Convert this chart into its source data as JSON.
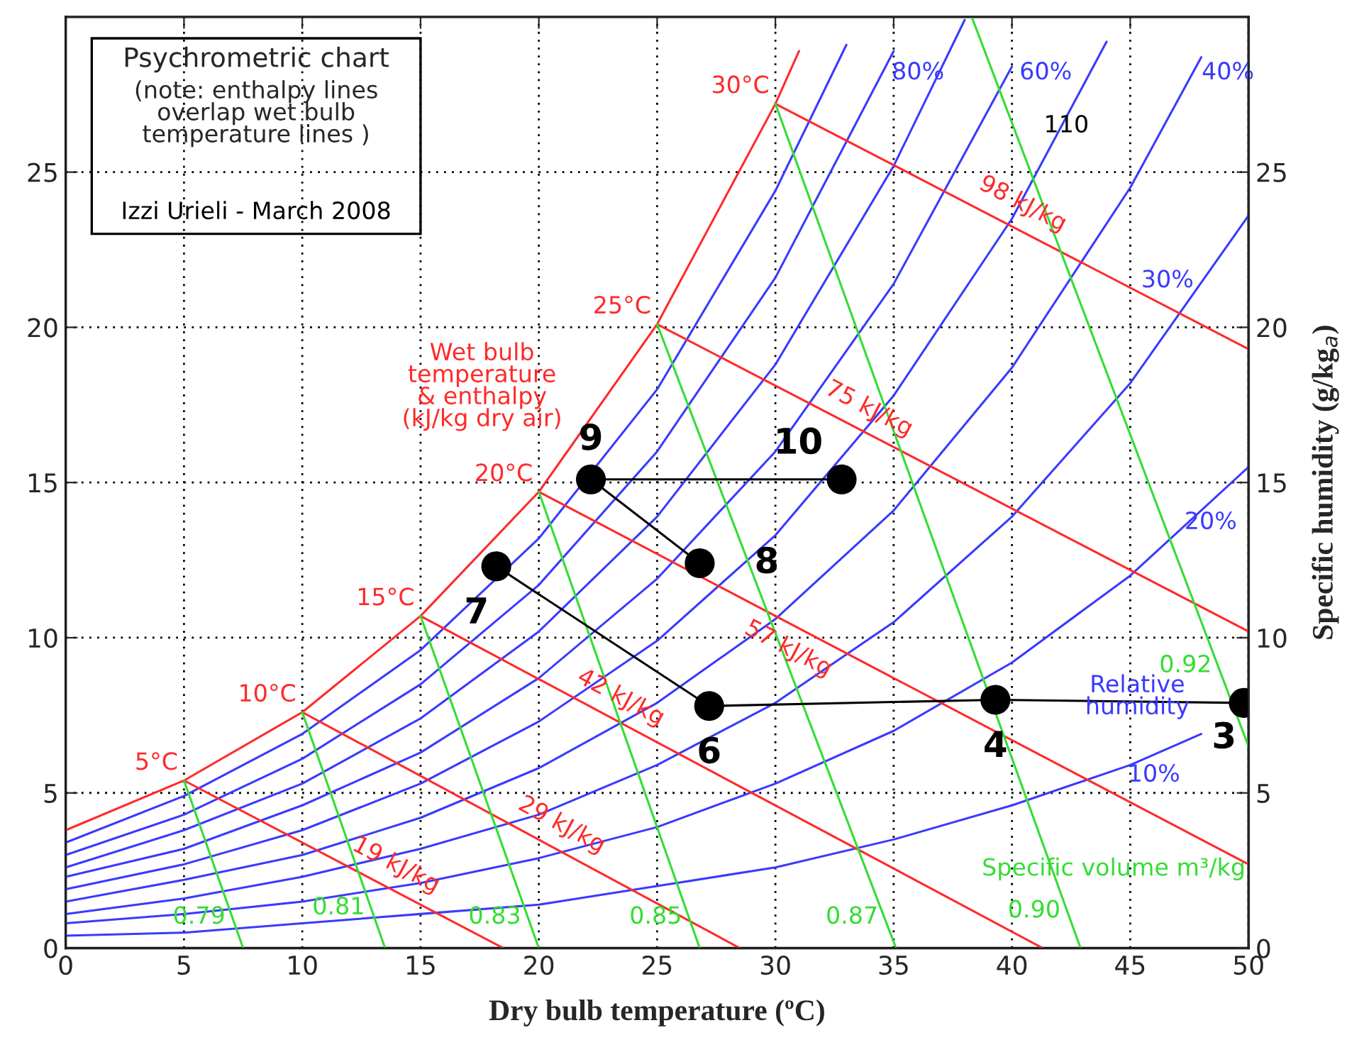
{
  "chart_data": {
    "type": "line",
    "title": "Psychrometric chart",
    "subtitle": "(note: enthalpy lines\noverlap wet bulb\ntemperature lines )",
    "xlabel": "Dry bulb temperature (ºC)",
    "y2label": "Specific humidity (g/kg$_{a}$)",
    "xlim": [
      0,
      50
    ],
    "xticks": [
      0,
      5,
      10,
      15,
      20,
      25,
      30,
      35,
      40,
      45,
      50
    ],
    "ylim": [
      0,
      30
    ],
    "yticks": [
      0,
      5,
      10,
      15,
      20,
      25
    ],
    "y2lim": [
      0,
      30
    ],
    "y2ticks": [
      0,
      5,
      10,
      15,
      20,
      25
    ],
    "grid": true,
    "series": [
      {
        "color": "#3a3aff",
        "x": [
          0,
          5,
          10,
          15,
          20,
          25,
          30,
          33
        ],
        "values": [
          3.4,
          4.9,
          6.9,
          9.6,
          13.2,
          18.0,
          24.4,
          29.1
        ]
      },
      {
        "color": "#3a3aff",
        "x": [
          0,
          5,
          10,
          15,
          20,
          25,
          30,
          35
        ],
        "values": [
          3.0,
          4.3,
          6.1,
          8.5,
          11.7,
          16.0,
          21.6,
          28.9
        ]
      },
      {
        "color": "#3a3aff",
        "x": [
          0,
          5,
          10,
          15,
          20,
          25,
          30,
          35,
          38
        ],
        "values": [
          2.6,
          3.8,
          5.3,
          7.4,
          10.2,
          13.9,
          18.8,
          25.2,
          29.9
        ]
      },
      {
        "color": "#3a3aff",
        "x": [
          0,
          5,
          10,
          15,
          20,
          25,
          30,
          35,
          40
        ],
        "values": [
          2.3,
          3.2,
          4.6,
          6.3,
          8.7,
          11.9,
          16.0,
          21.4,
          28.4
        ]
      },
      {
        "color": "#3a3aff",
        "x": [
          0,
          5,
          10,
          15,
          20,
          25,
          30,
          35,
          40,
          44
        ],
        "values": [
          1.9,
          2.7,
          3.8,
          5.3,
          7.3,
          9.9,
          13.3,
          17.8,
          23.5,
          29.2
        ]
      },
      {
        "color": "#3a3aff",
        "x": [
          0,
          5,
          10,
          15,
          20,
          25,
          30,
          35,
          40,
          45,
          48
        ],
        "values": [
          1.5,
          2.2,
          3.0,
          4.2,
          5.8,
          7.9,
          10.6,
          14.1,
          18.7,
          24.5,
          28.7
        ]
      },
      {
        "color": "#3a3aff",
        "x": [
          0,
          5,
          10,
          15,
          20,
          25,
          30,
          35,
          40,
          45,
          50
        ],
        "values": [
          1.1,
          1.6,
          2.3,
          3.2,
          4.3,
          5.9,
          7.9,
          10.5,
          13.9,
          18.2,
          23.6
        ]
      },
      {
        "color": "#3a3aff",
        "x": [
          0,
          5,
          10,
          15,
          20,
          25,
          30,
          35,
          40,
          45,
          50
        ],
        "values": [
          0.8,
          1.1,
          1.5,
          2.1,
          2.9,
          3.9,
          5.3,
          7.0,
          9.2,
          12.0,
          15.5
        ]
      },
      {
        "color": "#3a3aff",
        "x": [
          0,
          5,
          10,
          15,
          20,
          25,
          30,
          35,
          40,
          45,
          48
        ],
        "values": [
          0.4,
          0.5,
          0.8,
          1.1,
          1.4,
          2.0,
          2.6,
          3.5,
          4.6,
          5.9,
          6.9
        ]
      },
      {
        "color": "#ff2a2a",
        "x": [
          0,
          5,
          10,
          15,
          20,
          25,
          30,
          31
        ],
        "values": [
          3.8,
          5.4,
          7.6,
          10.7,
          14.7,
          20.1,
          27.2,
          28.9
        ]
      },
      {
        "color": "#ff2a2a",
        "x": [
          5,
          18.5
        ],
        "values": [
          5.4,
          0
        ]
      },
      {
        "color": "#ff2a2a",
        "x": [
          10,
          28.5
        ],
        "values": [
          7.6,
          0
        ]
      },
      {
        "color": "#ff2a2a",
        "x": [
          15,
          41.3
        ],
        "values": [
          10.7,
          0
        ]
      },
      {
        "color": "#ff2a2a",
        "x": [
          20,
          50
        ],
        "values": [
          14.7,
          2.7
        ]
      },
      {
        "color": "#ff2a2a",
        "x": [
          25,
          50
        ],
        "values": [
          20.1,
          10.2
        ]
      },
      {
        "color": "#ff2a2a",
        "x": [
          30,
          50
        ],
        "values": [
          27.2,
          19.3
        ]
      },
      {
        "color": "#33dd33",
        "x": [
          5,
          7.5
        ],
        "values": [
          5.4,
          0
        ]
      },
      {
        "color": "#33dd33",
        "x": [
          10,
          13.5
        ],
        "values": [
          7.6,
          0
        ]
      },
      {
        "color": "#33dd33",
        "x": [
          15,
          20.0
        ],
        "values": [
          10.7,
          0
        ]
      },
      {
        "color": "#33dd33",
        "x": [
          20,
          26.8
        ],
        "values": [
          14.7,
          0
        ]
      },
      {
        "color": "#33dd33",
        "x": [
          25,
          35.1
        ],
        "values": [
          20.1,
          0
        ]
      },
      {
        "color": "#33dd33",
        "x": [
          30,
          42.9
        ],
        "values": [
          27.2,
          0
        ]
      },
      {
        "color": "#33dd33",
        "x": [
          38.3,
          50
        ],
        "values": [
          30,
          6.5
        ]
      },
      {
        "color": "#000000",
        "x": [
          32.8,
          22.2,
          26.8
        ],
        "values": [
          15.1,
          15.1,
          12.4
        ]
      },
      {
        "color": "#000000",
        "x": [
          18.2,
          27.2,
          39.3,
          49.8
        ],
        "values": [
          12.3,
          7.8,
          8.0,
          7.9
        ]
      },
      {
        "type": "scatter",
        "color": "#000000",
        "marker": "circle",
        "x": [
          49.8,
          39.3,
          27.2,
          18.2,
          26.8,
          22.2,
          32.8
        ],
        "values": [
          7.9,
          8.0,
          7.8,
          12.3,
          12.4,
          15.1,
          15.1
        ]
      }
    ],
    "annotations": [
      "Izzi Urieli - March 2008",
      "110",
      "Relative\nhumidity",
      "Specific volume m³/kg",
      "Wet bulb\ntemperature\n& enthalpy\n(kJ/kg dry air)",
      {
        "text": "5°C",
        "x": 5,
        "y": 5.4
      },
      {
        "text": "10°C",
        "x": 10,
        "y": 7.6
      },
      {
        "text": "15°C",
        "x": 15,
        "y": 10.7
      },
      {
        "text": "20°C",
        "x": 20,
        "y": 14.7
      },
      {
        "text": "25°C",
        "x": 25,
        "y": 20.1
      },
      {
        "text": "30°C",
        "x": 30,
        "y": 27.2
      },
      {
        "text": "19 kJ/kg",
        "x": 13.5,
        "y": 2.0
      },
      {
        "text": "29 kJ/kg",
        "x": 20.5,
        "y": 3.3
      },
      {
        "text": "42 kJ/kg",
        "x": 23,
        "y": 7.4
      },
      {
        "text": "57 kJ/kg",
        "x": 31,
        "y": 10.3
      },
      {
        "text": "75 kJ/kg",
        "x": 33.5,
        "y": 16.7
      },
      {
        "text": "98 kJ/kg",
        "x": 40,
        "y": 23.3
      },
      {
        "text": "80%",
        "x": 34.5,
        "y": 28.2
      },
      {
        "text": "60%",
        "x": 39.9,
        "y": 28.2
      },
      {
        "text": "40%",
        "x": 47.6,
        "y": 28.2
      },
      {
        "text": "30%",
        "x": 48.1,
        "y": 21.5
      },
      {
        "text": "20%",
        "x": 48.4,
        "y": 14.4
      },
      {
        "text": "10%",
        "x": 46,
        "y": 6.2
      },
      {
        "text": "0.79",
        "x": 7.0,
        "y": 1.0
      },
      {
        "text": "0.81",
        "x": 12.9,
        "y": 1.3
      },
      {
        "text": "0.83",
        "x": 19.5,
        "y": 1.0
      },
      {
        "text": "0.85",
        "x": 26.3,
        "y": 1.0
      },
      {
        "text": "0.87",
        "x": 34.6,
        "y": 1.0
      },
      {
        "text": "0.90",
        "x": 42.3,
        "y": 1.2
      },
      {
        "text": "0.92",
        "x": 48.7,
        "y": 9.1
      },
      {
        "text": "9",
        "x": 22.2,
        "y": 15.1
      },
      {
        "text": "10",
        "x": 32.8,
        "y": 15.1
      },
      {
        "text": "8",
        "x": 26.8,
        "y": 12.4
      },
      {
        "text": "7",
        "x": 18.2,
        "y": 12.3
      },
      {
        "text": "6",
        "x": 27.2,
        "y": 7.8
      },
      {
        "text": "4",
        "x": 39.3,
        "y": 8.0
      },
      {
        "text": "3",
        "x": 49.8,
        "y": 7.9
      }
    ]
  }
}
